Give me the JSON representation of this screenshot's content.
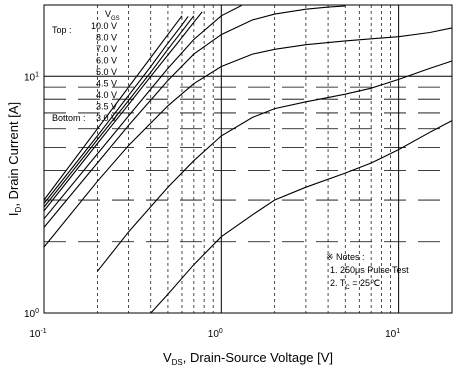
{
  "chart_data": {
    "type": "line",
    "title": "",
    "xlabel": "V_DS, Drain-Source Voltage [V]",
    "xlabel_main": "V",
    "xlabel_sub": "DS",
    "xlabel_rest": ", Drain-Source Voltage [V]",
    "ylabel": "I_D, Drain Current [A]",
    "ylabel_main": "I",
    "ylabel_sub": "D",
    "ylabel_rest": ", Drain Current [A]",
    "xscale": "log",
    "yscale": "log",
    "xlim": [
      0.1,
      20
    ],
    "ylim": [
      1,
      20
    ],
    "grid": true,
    "x_ticks": [
      {
        "base": "10",
        "exp": "-1",
        "value": 0.1
      },
      {
        "base": "10",
        "exp": "0",
        "value": 1
      },
      {
        "base": "10",
        "exp": "1",
        "value": 10
      }
    ],
    "y_ticks": [
      {
        "base": "10",
        "exp": "0",
        "value": 1
      },
      {
        "base": "10",
        "exp": "1",
        "value": 10
      }
    ],
    "legend": {
      "placement": "top-left",
      "top_label": "Top :",
      "bottom_label": "Bottom :",
      "header": "V",
      "header_sub": "GS",
      "entries": [
        "10.0 V",
        "8.0 V",
        "7.0 V",
        "6.0 V",
        "5.0 V",
        "4.5 V",
        "4.0 V",
        "3.5 V",
        "3.0 V"
      ]
    },
    "notes": {
      "title": "※ Notes :",
      "line1": "1. 250μs Pulse Test",
      "line2_main": "2. T",
      "line2_sub": "C",
      "line2_rest": " = 25℃"
    },
    "series": [
      {
        "name": "10.0 V",
        "x": [
          0.1,
          0.2,
          0.3,
          0.4,
          0.5,
          0.6
        ],
        "y": [
          3.0,
          6.0,
          9.0,
          12.0,
          15.0,
          18.0
        ]
      },
      {
        "name": "8.0 V",
        "x": [
          0.1,
          0.2,
          0.3,
          0.4,
          0.5,
          0.6,
          0.65
        ],
        "y": [
          2.9,
          5.6,
          8.3,
          11.0,
          13.8,
          16.5,
          17.9
        ]
      },
      {
        "name": "7.0 V",
        "x": [
          0.1,
          0.2,
          0.3,
          0.4,
          0.5,
          0.6,
          0.7
        ],
        "y": [
          2.8,
          5.4,
          7.9,
          10.4,
          13.0,
          15.5,
          18.0
        ]
      },
      {
        "name": "6.0 V",
        "x": [
          0.1,
          0.2,
          0.3,
          0.4,
          0.5,
          0.6,
          0.7,
          0.78
        ],
        "y": [
          2.7,
          5.2,
          7.6,
          10.0,
          12.3,
          14.6,
          16.9,
          18.7
        ]
      },
      {
        "name": "5.0 V",
        "x": [
          0.1,
          0.2,
          0.3,
          0.5,
          0.7,
          1.0,
          1.3
        ],
        "y": [
          2.5,
          4.7,
          6.8,
          10.8,
          14.3,
          18.0,
          19.9
        ]
      },
      {
        "name": "4.5 V",
        "x": [
          0.1,
          0.2,
          0.3,
          0.5,
          0.7,
          1.0,
          1.5,
          2.0,
          3.0,
          4.0,
          5.0
        ],
        "y": [
          2.3,
          4.3,
          6.2,
          9.6,
          12.4,
          15.0,
          17.3,
          18.3,
          19.2,
          19.6,
          19.8
        ]
      },
      {
        "name": "4.0 V",
        "x": [
          0.1,
          0.2,
          0.3,
          0.5,
          0.7,
          1.0,
          1.5,
          2.0,
          3.0,
          5.0,
          7.0,
          10.0,
          15.0,
          20.0
        ],
        "y": [
          1.9,
          3.6,
          5.1,
          7.5,
          9.3,
          11.0,
          12.4,
          13.0,
          13.6,
          14.1,
          14.4,
          14.7,
          15.3,
          16.0
        ]
      },
      {
        "name": "3.5 V",
        "x": [
          0.2,
          0.3,
          0.5,
          0.7,
          1.0,
          1.5,
          2.0,
          3.0,
          5.0,
          7.0,
          10.0,
          15.0,
          20.0
        ],
        "y": [
          1.5,
          2.2,
          3.4,
          4.4,
          5.6,
          6.7,
          7.3,
          7.8,
          8.4,
          8.9,
          9.7,
          10.8,
          11.6
        ]
      },
      {
        "name": "3.0 V",
        "x": [
          0.4,
          0.5,
          0.7,
          1.0,
          1.5,
          2.0,
          3.0,
          5.0,
          7.0,
          10.0,
          15.0,
          20.0
        ],
        "y": [
          1.0,
          1.2,
          1.6,
          2.1,
          2.6,
          3.0,
          3.4,
          3.9,
          4.3,
          4.9,
          5.8,
          6.5
        ]
      }
    ]
  }
}
